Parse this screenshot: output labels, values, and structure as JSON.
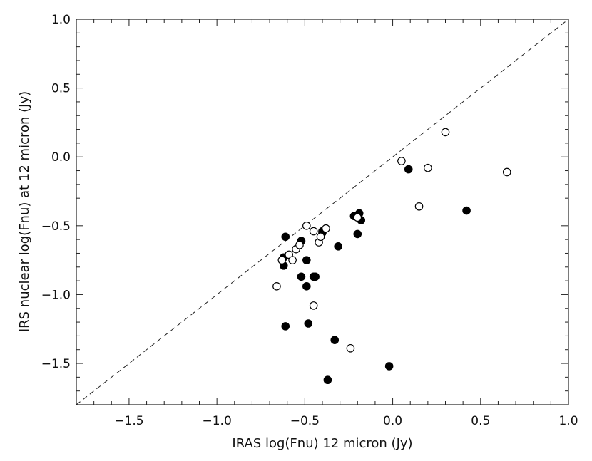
{
  "chart_data": {
    "type": "scatter",
    "xlabel": "IRAS log(Fnu) 12 micron (Jy)",
    "ylabel": "IRS nuclear log(Fnu) at 12 micron (Jy)",
    "xlim": [
      -1.8,
      1.0
    ],
    "ylim": [
      -1.8,
      1.0
    ],
    "x_ticks": [
      -1.5,
      -1.0,
      -0.5,
      0.0,
      0.5,
      1.0
    ],
    "x_tick_labels": [
      "−1.5",
      "−1.0",
      "−0.5",
      "0.0",
      "0.5",
      "1.0"
    ],
    "y_ticks": [
      -1.5,
      -1.0,
      -0.5,
      0.0,
      0.5,
      1.0
    ],
    "y_tick_labels": [
      "−1.5",
      "−1.0",
      "−0.5",
      "0.0",
      "0.5",
      "1.0"
    ],
    "grid": false,
    "reference_line": {
      "style": "dashed",
      "x": [
        -1.8,
        1.0
      ],
      "y": [
        -1.8,
        1.0
      ]
    },
    "series": [
      {
        "marker": "filled circle",
        "color": "#000000",
        "points": [
          [
            -0.61,
            -0.58
          ],
          [
            -0.62,
            -0.73
          ],
          [
            -0.62,
            -0.79
          ],
          [
            -0.52,
            -0.61
          ],
          [
            -0.49,
            -0.75
          ],
          [
            -0.52,
            -0.87
          ],
          [
            -0.49,
            -0.94
          ],
          [
            -0.45,
            -0.87
          ],
          [
            -0.44,
            -0.87
          ],
          [
            -0.4,
            -0.54
          ],
          [
            -0.4,
            -0.55
          ],
          [
            -0.31,
            -0.65
          ],
          [
            -0.22,
            -0.43
          ],
          [
            -0.19,
            -0.41
          ],
          [
            -0.18,
            -0.46
          ],
          [
            -0.2,
            -0.56
          ],
          [
            -0.61,
            -1.23
          ],
          [
            -0.48,
            -1.21
          ],
          [
            -0.33,
            -1.33
          ],
          [
            -0.37,
            -1.62
          ],
          [
            -0.02,
            -1.52
          ],
          [
            0.09,
            -0.09
          ],
          [
            0.42,
            -0.39
          ]
        ]
      },
      {
        "marker": "open circle",
        "color": "#000000",
        "points": [
          [
            -0.66,
            -0.94
          ],
          [
            -0.63,
            -0.75
          ],
          [
            -0.59,
            -0.71
          ],
          [
            -0.57,
            -0.75
          ],
          [
            -0.55,
            -0.67
          ],
          [
            -0.53,
            -0.64
          ],
          [
            -0.49,
            -0.5
          ],
          [
            -0.45,
            -0.54
          ],
          [
            -0.42,
            -0.62
          ],
          [
            -0.41,
            -0.58
          ],
          [
            -0.38,
            -0.52
          ],
          [
            -0.45,
            -1.08
          ],
          [
            -0.24,
            -1.39
          ],
          [
            -0.2,
            -0.44
          ],
          [
            0.05,
            -0.03
          ],
          [
            0.15,
            -0.36
          ],
          [
            0.2,
            -0.08
          ],
          [
            0.3,
            0.18
          ],
          [
            0.65,
            -0.11
          ]
        ]
      }
    ]
  }
}
